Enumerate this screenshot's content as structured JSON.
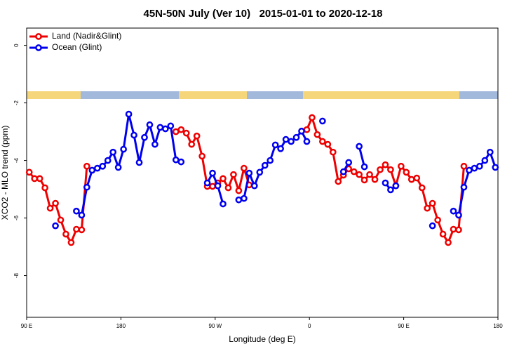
{
  "chart_data": {
    "type": "line",
    "title": "45N-50N July (Ver 10)   2015-01-01 to 2020-12-18",
    "xlabel": "Longitude (deg E)",
    "ylabel": "XCO2 - MLO trend (ppm)",
    "xlim": [
      90,
      540
    ],
    "xticks": [
      {
        "value": 90,
        "label": "90 E"
      },
      180,
      {
        "value": 270,
        "label": "90 W"
      },
      {
        "value": 360,
        "label": "0"
      },
      {
        "value": 450,
        "label": "90 E"
      },
      {
        "value": 540,
        "label": "180"
      }
    ],
    "ylim": [
      -9.45,
      0.6
    ],
    "yticks": [
      0,
      -2,
      -4,
      -6,
      -8
    ],
    "legend": "top-left",
    "series": [
      {
        "name": "Land (Nadir&Glint)",
        "color": "#ee0000",
        "x": [
          92.5,
          97.5,
          102.5,
          107.5,
          112.5,
          117.5,
          122.5,
          127.5,
          132.5,
          137.5,
          142.5,
          147.5,
          152.5,
          232.5,
          237.5,
          242.5,
          247.5,
          252.5,
          257.5,
          262.5,
          267.5,
          272.5,
          277.5,
          282.5,
          287.5,
          292.5,
          297.5,
          302.5,
          307.5,
          357.5,
          362.5,
          367.5,
          372.5,
          377.5,
          382.5,
          387.5,
          392.5,
          397.5,
          402.5,
          407.5,
          412.5,
          417.5,
          422.5,
          427.5,
          432.5,
          437.5,
          442.5,
          447.5,
          452.5,
          457.5,
          462.5,
          467.5,
          472.5,
          477.5,
          482.5,
          487.5,
          492.5,
          497.5,
          502.5,
          507.5
        ],
        "values": [
          -4.41,
          -4.63,
          -4.63,
          -4.95,
          -5.66,
          -5.49,
          -6.07,
          -6.56,
          -6.85,
          -6.39,
          -6.41,
          -4.2,
          null,
          -3.0,
          -2.93,
          -3.05,
          -3.44,
          -3.15,
          -3.85,
          -4.9,
          -4.9,
          -4.78,
          -4.63,
          -4.95,
          -4.49,
          -5.05,
          -4.27,
          -4.85,
          null,
          -2.93,
          -2.51,
          -3.1,
          -3.34,
          -3.44,
          -3.71,
          -4.73,
          -4.51,
          -4.29,
          -4.39,
          -4.49,
          -4.68,
          -4.49,
          -4.66,
          -4.32,
          -4.15,
          -4.32,
          -4.88,
          -4.2,
          -4.41,
          -4.66,
          -4.61,
          -4.95,
          -5.66,
          -5.49,
          -6.07,
          -6.56,
          -6.85,
          -6.39,
          -6.41,
          -4.2
        ]
      },
      {
        "name": "Ocean (Glint)",
        "color": "#0000ee",
        "x": [
          117.5,
          122.5,
          137.5,
          142.5,
          147.5,
          152.5,
          157.5,
          162.5,
          167.5,
          172.5,
          177.5,
          182.5,
          187.5,
          192.5,
          197.5,
          202.5,
          207.5,
          212.5,
          217.5,
          222.5,
          227.5,
          232.5,
          237.5,
          242.5,
          262.5,
          267.5,
          272.5,
          277.5,
          282.5,
          292.5,
          297.5,
          302.5,
          307.5,
          312.5,
          317.5,
          322.5,
          327.5,
          332.5,
          337.5,
          342.5,
          347.5,
          352.5,
          357.5,
          362.5,
          372.5,
          377.5,
          392.5,
          397.5,
          402.5,
          407.5,
          412.5,
          417.5,
          432.5,
          437.5,
          442.5,
          447.5,
          477.5,
          482.5,
          497.5,
          502.5,
          507.5,
          512.5,
          517.5,
          522.5,
          527.5,
          532.5,
          537.5
        ],
        "values": [
          -6.27,
          null,
          -5.76,
          -5.9,
          -4.93,
          -4.34,
          -4.27,
          -4.2,
          -4.0,
          -3.71,
          -4.24,
          -3.61,
          -2.39,
          -3.12,
          -4.07,
          -3.2,
          -2.76,
          -3.44,
          -2.85,
          -2.9,
          -2.8,
          -3.98,
          -4.05,
          null,
          -4.78,
          -4.44,
          -4.88,
          -5.51,
          null,
          -5.37,
          -5.32,
          -4.44,
          -4.88,
          -4.41,
          -4.17,
          -4.0,
          -3.46,
          -3.59,
          -3.27,
          -3.34,
          -3.2,
          -2.98,
          -3.34,
          null,
          -2.63,
          null,
          -4.39,
          -4.07,
          null,
          -3.51,
          -4.22,
          null,
          -4.78,
          -5.02,
          -4.88,
          null,
          -6.27,
          null,
          -5.76,
          -5.9,
          -4.93,
          -4.34,
          -4.27,
          -4.2,
          -4.0,
          -3.71,
          -4.24
        ]
      }
    ]
  }
}
